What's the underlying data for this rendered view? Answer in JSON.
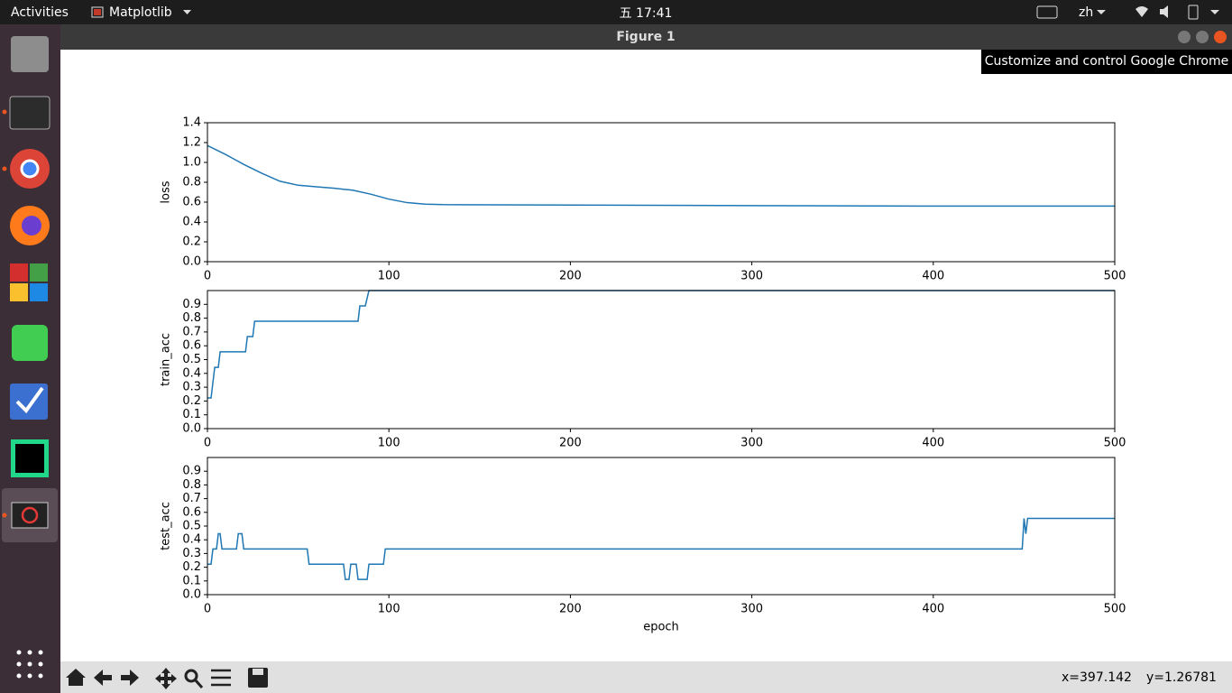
{
  "topbar": {
    "activities": "Activities",
    "app": "Matplotlib",
    "clock": "五 17:41",
    "lang": "zh"
  },
  "window": {
    "title": "Figure 1",
    "tooltip": "Customize and control Google Chrome"
  },
  "status": {
    "x": "x=397.142",
    "y": "y=1.26781"
  },
  "chart_data": [
    {
      "type": "line",
      "ylabel": "loss",
      "color": "#1f77b4",
      "x": [
        0,
        10,
        20,
        30,
        40,
        50,
        60,
        70,
        80,
        90,
        100,
        110,
        120,
        130,
        200,
        300,
        400,
        500
      ],
      "values": [
        1.17,
        1.08,
        0.98,
        0.89,
        0.81,
        0.77,
        0.755,
        0.74,
        0.72,
        0.68,
        0.63,
        0.595,
        0.58,
        0.575,
        0.57,
        0.565,
        0.56,
        0.56
      ],
      "xlim": [
        0,
        500
      ],
      "xticks": [
        0,
        100,
        200,
        300,
        400,
        500
      ],
      "ylim": [
        0,
        1.4
      ],
      "yticks": [
        {
          "value": 0,
          "label": "0.0"
        },
        0.2,
        0.4,
        0.6,
        0.8,
        {
          "value": 1,
          "label": "1.0"
        },
        1.2,
        1.4
      ]
    },
    {
      "type": "line",
      "ylabel": "train_acc",
      "color": "#1f77b4",
      "x": [
        0,
        2,
        4,
        6,
        7,
        21,
        22,
        25,
        26,
        83,
        84,
        87,
        89,
        500
      ],
      "values": [
        0.222,
        0.222,
        0.444,
        0.444,
        0.556,
        0.556,
        0.667,
        0.667,
        0.778,
        0.778,
        0.889,
        0.889,
        1.0,
        1.0
      ],
      "xlim": [
        0,
        500
      ],
      "xticks": [
        0,
        100,
        200,
        300,
        400,
        500
      ],
      "ylim": [
        0,
        1.0
      ],
      "yticks": [
        {
          "value": 0,
          "label": "0.0"
        },
        0.1,
        0.2,
        0.3,
        0.4,
        0.5,
        0.6,
        0.7,
        0.8,
        0.9
      ]
    },
    {
      "type": "line",
      "ylabel": "test_acc",
      "xlabel": "epoch",
      "color": "#1f77b4",
      "x": [
        0,
        2,
        3,
        5,
        6,
        7,
        8,
        16,
        17,
        19,
        20,
        55,
        56,
        75,
        76,
        78,
        79,
        82,
        83,
        88,
        89,
        97,
        98,
        449,
        450,
        451,
        452,
        500
      ],
      "values": [
        0.222,
        0.222,
        0.333,
        0.333,
        0.444,
        0.444,
        0.333,
        0.333,
        0.444,
        0.444,
        0.333,
        0.333,
        0.222,
        0.222,
        0.111,
        0.111,
        0.222,
        0.222,
        0.111,
        0.111,
        0.222,
        0.222,
        0.333,
        0.333,
        0.556,
        0.444,
        0.556,
        0.556
      ],
      "xlim": [
        0,
        500
      ],
      "xticks": [
        0,
        100,
        200,
        300,
        400,
        500
      ],
      "ylim": [
        0,
        1.0
      ],
      "yticks": [
        {
          "value": 0,
          "label": "0.0"
        },
        0.1,
        0.2,
        0.3,
        0.4,
        0.5,
        0.6,
        0.7,
        0.8,
        0.9
      ]
    }
  ]
}
